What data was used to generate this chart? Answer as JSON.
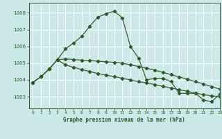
{
  "title": "Graphe pression niveau de la mer (hPa)",
  "background_color": "#cce8e8",
  "grid_color": "#b0d4d4",
  "line_color": "#2d5a27",
  "xlim": [
    -0.5,
    23
  ],
  "ylim": [
    1002.3,
    1008.6
  ],
  "yticks": [
    1003,
    1004,
    1005,
    1006,
    1007,
    1008
  ],
  "xticks": [
    0,
    1,
    2,
    3,
    4,
    5,
    6,
    7,
    8,
    9,
    10,
    11,
    12,
    13,
    14,
    15,
    16,
    17,
    18,
    19,
    20,
    21,
    22,
    23
  ],
  "series1_x": [
    0,
    1,
    2,
    3,
    4,
    5,
    6,
    7,
    8,
    9,
    10,
    11,
    12,
    13,
    14,
    15,
    16,
    17,
    18,
    19,
    20,
    21,
    22,
    23
  ],
  "series1_y": [
    1003.85,
    1004.2,
    1004.65,
    1005.2,
    1005.85,
    1006.2,
    1006.6,
    1007.2,
    1007.75,
    1007.95,
    1008.1,
    1007.7,
    1006.0,
    1005.3,
    1004.0,
    1004.1,
    1004.1,
    1003.9,
    1003.2,
    1003.2,
    1003.2,
    1002.8,
    1002.7,
    1003.15
  ],
  "series2_x": [
    0,
    1,
    2,
    3,
    4,
    5,
    6,
    7,
    8,
    9,
    10,
    11,
    12,
    13,
    14,
    15,
    16,
    17,
    18,
    19,
    20,
    21,
    22,
    23
  ],
  "series2_y": [
    1003.85,
    1004.2,
    1004.65,
    1005.2,
    1005.25,
    1005.22,
    1005.18,
    1005.15,
    1005.12,
    1005.08,
    1005.05,
    1005.0,
    1004.9,
    1004.8,
    1004.7,
    1004.58,
    1004.45,
    1004.32,
    1004.18,
    1004.05,
    1003.9,
    1003.75,
    1003.6,
    1003.45
  ],
  "series3_x": [
    0,
    1,
    2,
    3,
    4,
    5,
    6,
    7,
    8,
    9,
    10,
    11,
    12,
    13,
    14,
    15,
    16,
    17,
    18,
    19,
    20,
    21,
    22,
    23
  ],
  "series3_y": [
    1003.85,
    1004.2,
    1004.65,
    1005.2,
    1004.9,
    1004.75,
    1004.62,
    1004.5,
    1004.38,
    1004.28,
    1004.2,
    1004.1,
    1004.0,
    1003.9,
    1003.82,
    1003.72,
    1003.62,
    1003.52,
    1003.42,
    1003.32,
    1003.22,
    1003.12,
    1003.05,
    1003.0
  ]
}
